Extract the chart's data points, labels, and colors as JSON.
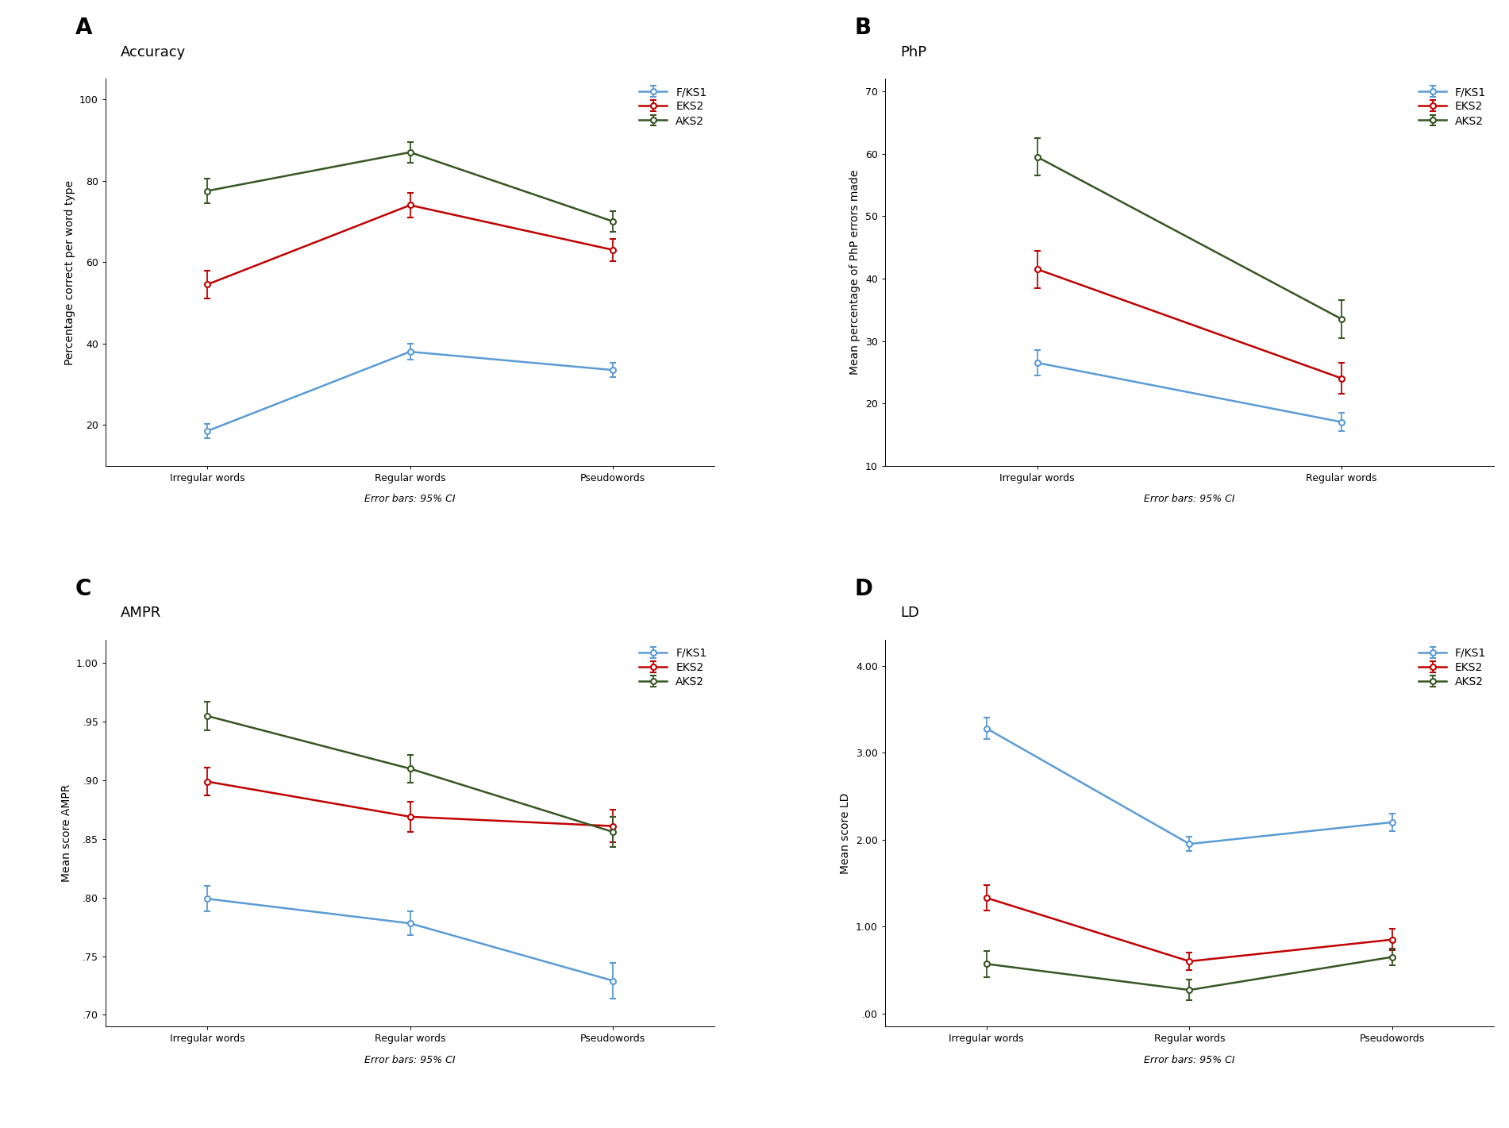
{
  "panel_A": {
    "title": "Accuracy",
    "label": "A",
    "xlabel_categories": [
      "Irregular words",
      "Regular words",
      "Pseudowords"
    ],
    "ylabel": "Percentage correct per word type",
    "ylim": [
      10,
      105
    ],
    "yticks": [
      20,
      40,
      60,
      80,
      100
    ],
    "yticklabels": [
      "20",
      "40",
      "60",
      "80",
      "100"
    ],
    "series": {
      "F/KS1": {
        "color": "#5B9BD5",
        "values": [
          18.5,
          38.0,
          33.5
        ],
        "errors": [
          1.8,
          2.0,
          1.8
        ]
      },
      "EKS2": {
        "color": "#C00000",
        "values": [
          54.5,
          74.0,
          63.0
        ],
        "errors": [
          3.5,
          3.0,
          2.8
        ]
      },
      "AKS2": {
        "color": "#375623",
        "values": [
          77.5,
          87.0,
          70.0
        ],
        "errors": [
          3.0,
          2.5,
          2.5
        ]
      }
    }
  },
  "panel_B": {
    "title": "PhP",
    "label": "B",
    "xlabel_categories": [
      "Irregular words",
      "Regular words"
    ],
    "ylabel": "Mean percentage of PhP errors made",
    "ylim": [
      10,
      72
    ],
    "yticks": [
      10,
      20,
      30,
      40,
      50,
      60,
      70
    ],
    "yticklabels": [
      "10",
      "20",
      "30",
      "40",
      "50",
      "60",
      "70"
    ],
    "series": {
      "F/KS1": {
        "color": "#5B9BD5",
        "values": [
          26.5,
          17.0
        ],
        "errors": [
          2.0,
          1.5
        ]
      },
      "EKS2": {
        "color": "#C00000",
        "values": [
          41.5,
          24.0
        ],
        "errors": [
          3.0,
          2.5
        ]
      },
      "AKS2": {
        "color": "#375623",
        "values": [
          59.5,
          33.5
        ],
        "errors": [
          3.0,
          3.0
        ]
      }
    }
  },
  "panel_C": {
    "title": "AMPR",
    "label": "C",
    "xlabel_categories": [
      "Irregular words",
      "Regular words",
      "Pseudowords"
    ],
    "ylabel": "Mean score AMPR",
    "ylim": [
      0.69,
      1.02
    ],
    "yticks": [
      0.7,
      0.75,
      0.8,
      0.85,
      0.9,
      0.95,
      1.0
    ],
    "yticklabels": [
      ".70",
      ".75",
      ".80",
      ".85",
      ".90",
      ".95",
      "1.00"
    ],
    "series": {
      "F/KS1": {
        "color": "#5B9BD5",
        "values": [
          0.799,
          0.778,
          0.729
        ],
        "errors": [
          0.011,
          0.01,
          0.015
        ]
      },
      "EKS2": {
        "color": "#C00000",
        "values": [
          0.899,
          0.869,
          0.861
        ],
        "errors": [
          0.012,
          0.013,
          0.014
        ]
      },
      "AKS2": {
        "color": "#375623",
        "values": [
          0.955,
          0.91,
          0.856
        ],
        "errors": [
          0.012,
          0.012,
          0.013
        ]
      }
    }
  },
  "panel_D": {
    "title": "LD",
    "label": "D",
    "xlabel_categories": [
      "Irregular words",
      "Regular words",
      "Pseudowords"
    ],
    "ylabel": "Mean score LD",
    "ylim": [
      -0.15,
      4.3
    ],
    "yticks": [
      0.0,
      1.0,
      2.0,
      3.0,
      4.0
    ],
    "yticklabels": [
      ".00",
      "1.00",
      "2.00",
      "3.00",
      "4.00"
    ],
    "series": {
      "F/KS1": {
        "color": "#5B9BD5",
        "values": [
          3.28,
          1.95,
          2.2
        ],
        "errors": [
          0.12,
          0.08,
          0.1
        ]
      },
      "EKS2": {
        "color": "#C00000",
        "values": [
          1.33,
          0.6,
          0.85
        ],
        "errors": [
          0.15,
          0.1,
          0.12
        ]
      },
      "AKS2": {
        "color": "#375623",
        "values": [
          0.57,
          0.27,
          0.65
        ],
        "errors": [
          0.15,
          0.12,
          0.1
        ]
      }
    }
  },
  "error_bar_text": "Error bars: 95% CI",
  "legend_labels": [
    "F/KS1",
    "EKS2",
    "AKS2"
  ],
  "legend_colors": [
    "#5B9BD5",
    "#C00000",
    "#375623"
  ],
  "background_color": "#FFFFFF",
  "marker": "o",
  "markersize": 5,
  "linewidth": 1.8,
  "capsize": 3,
  "elinewidth": 1.3,
  "label_fontsize": 20,
  "title_fontsize": 13,
  "axis_label_fontsize": 10,
  "tick_fontsize": 9,
  "legend_fontsize": 10,
  "error_bar_fontsize": 9
}
